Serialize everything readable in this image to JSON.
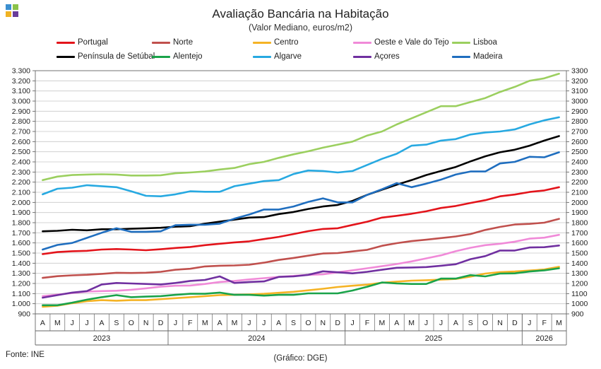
{
  "header": {
    "title": "Avaliação Bancária na Habitação",
    "subtitle": "(Valor Mediano, euros/m2)"
  },
  "logo": {
    "colors": [
      "#3b8fd0",
      "#8bc34a",
      "#f0b323",
      "#6a3d9a"
    ]
  },
  "footer": {
    "source": "Fonte: INE",
    "credit": "(Gráfico: DGE)"
  },
  "chart_data": {
    "type": "line",
    "title": "Avaliação Bancária na Habitação",
    "subtitle": "(Valor Mediano, euros/m2)",
    "x": [
      "A",
      "M",
      "J",
      "J",
      "A",
      "S",
      "O",
      "N",
      "D",
      "J",
      "F",
      "M",
      "A",
      "M",
      "J",
      "J",
      "A",
      "S",
      "O",
      "N",
      "D",
      "J",
      "F",
      "M",
      "A",
      "M",
      "J",
      "J",
      "A",
      "S",
      "O",
      "N",
      "D",
      "J",
      "F",
      "M"
    ],
    "years": [
      {
        "label": "2023",
        "start": 0,
        "end": 8
      },
      {
        "label": "2024",
        "start": 9,
        "end": 20
      },
      {
        "label": "2025",
        "start": 21,
        "end": 32
      },
      {
        "label": "2026",
        "start": 33,
        "end": 35
      }
    ],
    "ylim": [
      900,
      3300
    ],
    "y_ticks": [
      900,
      1000,
      1100,
      1200,
      1300,
      1400,
      1500,
      1600,
      1700,
      1800,
      1900,
      2000,
      2100,
      2200,
      2300,
      2400,
      2500,
      2600,
      2700,
      2800,
      2900,
      3000,
      3100,
      3200,
      3300
    ],
    "y_ticks_left": [
      "900",
      "1.000",
      "1.100",
      "1.200",
      "1.300",
      "1.400",
      "1.500",
      "1.600",
      "1.700",
      "1.800",
      "1.900",
      "2.000",
      "2.100",
      "2.200",
      "2.300",
      "2.400",
      "2.500",
      "2.600",
      "2.700",
      "2.800",
      "2.900",
      "3.000",
      "3.100",
      "3.200",
      "3.300"
    ],
    "y_ticks_right": [
      "900",
      "1000",
      "1100",
      "1200",
      "1300",
      "1400",
      "1500",
      "1600",
      "1700",
      "1800",
      "1900",
      "2000",
      "2100",
      "2200",
      "2300",
      "2400",
      "2500",
      "2600",
      "2700",
      "2800",
      "2900",
      "3000",
      "3100",
      "3200",
      "3300"
    ],
    "legend_position": "top",
    "series": [
      {
        "name": "Portugal",
        "color": "#e3141b",
        "values": [
          1490,
          1510,
          1518,
          1522,
          1535,
          1540,
          1535,
          1528,
          1538,
          1550,
          1560,
          1578,
          1592,
          1605,
          1616,
          1638,
          1660,
          1688,
          1716,
          1738,
          1745,
          1778,
          1810,
          1850,
          1868,
          1888,
          1912,
          1945,
          1965,
          1995,
          2022,
          2060,
          2078,
          2103,
          2118,
          2150
        ]
      },
      {
        "name": "Norte",
        "color": "#c0504d",
        "values": [
          1255,
          1272,
          1280,
          1286,
          1295,
          1305,
          1303,
          1306,
          1315,
          1335,
          1345,
          1368,
          1375,
          1378,
          1385,
          1405,
          1432,
          1452,
          1474,
          1496,
          1500,
          1516,
          1532,
          1572,
          1598,
          1618,
          1632,
          1648,
          1664,
          1688,
          1728,
          1758,
          1782,
          1788,
          1800,
          1838
        ]
      },
      {
        "name": "Centro",
        "color": "#f5b325",
        "values": [
          970,
          980,
          1005,
          1025,
          1035,
          1030,
          1035,
          1035,
          1045,
          1055,
          1065,
          1075,
          1085,
          1088,
          1092,
          1098,
          1108,
          1118,
          1132,
          1148,
          1165,
          1178,
          1188,
          1208,
          1218,
          1228,
          1232,
          1238,
          1245,
          1268,
          1298,
          1312,
          1318,
          1328,
          1338,
          1365
        ]
      },
      {
        "name": "Oeste e Vale do Tejo",
        "color": "#f08ad8",
        "values": [
          1075,
          1090,
          1105,
          1120,
          1125,
          1128,
          1138,
          1152,
          1168,
          1178,
          1180,
          1195,
          1215,
          1225,
          1240,
          1252,
          1265,
          1275,
          1285,
          1290,
          1310,
          1330,
          1350,
          1370,
          1392,
          1418,
          1448,
          1478,
          1518,
          1552,
          1578,
          1592,
          1612,
          1642,
          1652,
          1680
        ]
      },
      {
        "name": "Lisboa",
        "color": "#9bcf5f",
        "values": [
          2220,
          2255,
          2270,
          2275,
          2278,
          2275,
          2265,
          2265,
          2268,
          2288,
          2295,
          2305,
          2325,
          2340,
          2378,
          2400,
          2440,
          2475,
          2505,
          2540,
          2570,
          2600,
          2660,
          2700,
          2770,
          2830,
          2890,
          2950,
          2950,
          2990,
          3030,
          3090,
          3140,
          3200,
          3225,
          3270
        ]
      },
      {
        "name": "Península de Setúbal",
        "color": "#000000",
        "values": [
          1715,
          1720,
          1730,
          1725,
          1735,
          1735,
          1740,
          1745,
          1750,
          1760,
          1765,
          1790,
          1810,
          1830,
          1850,
          1855,
          1885,
          1905,
          1935,
          1960,
          1975,
          2015,
          2075,
          2125,
          2175,
          2220,
          2270,
          2310,
          2350,
          2405,
          2455,
          2495,
          2520,
          2560,
          2610,
          2655
        ]
      },
      {
        "name": "Alentejo",
        "color": "#1aa34a",
        "values": [
          985,
          985,
          1010,
          1040,
          1065,
          1085,
          1065,
          1070,
          1075,
          1088,
          1098,
          1098,
          1110,
          1088,
          1088,
          1080,
          1088,
          1088,
          1102,
          1102,
          1102,
          1130,
          1168,
          1210,
          1200,
          1195,
          1195,
          1248,
          1248,
          1282,
          1270,
          1298,
          1300,
          1318,
          1330,
          1350
        ]
      },
      {
        "name": "Algarve",
        "color": "#27a9e1",
        "values": [
          2080,
          2135,
          2145,
          2170,
          2160,
          2150,
          2110,
          2065,
          2060,
          2080,
          2110,
          2105,
          2105,
          2160,
          2185,
          2210,
          2220,
          2280,
          2315,
          2310,
          2295,
          2310,
          2370,
          2430,
          2480,
          2560,
          2570,
          2610,
          2625,
          2670,
          2690,
          2700,
          2720,
          2770,
          2810,
          2840
        ]
      },
      {
        "name": "Açores",
        "color": "#7030a0",
        "values": [
          1060,
          1085,
          1110,
          1125,
          1190,
          1205,
          1200,
          1195,
          1190,
          1205,
          1225,
          1235,
          1270,
          1205,
          1215,
          1220,
          1265,
          1270,
          1285,
          1320,
          1310,
          1300,
          1315,
          1335,
          1355,
          1358,
          1362,
          1375,
          1390,
          1440,
          1470,
          1525,
          1525,
          1555,
          1558,
          1575
        ]
      },
      {
        "name": "Madeira",
        "color": "#1f6ebf",
        "values": [
          1535,
          1580,
          1600,
          1650,
          1700,
          1745,
          1710,
          1710,
          1715,
          1775,
          1780,
          1780,
          1790,
          1840,
          1880,
          1930,
          1930,
          1960,
          2005,
          2040,
          2000,
          2000,
          2075,
          2130,
          2190,
          2150,
          2185,
          2225,
          2275,
          2305,
          2305,
          2385,
          2400,
          2450,
          2445,
          2495
        ]
      }
    ]
  }
}
